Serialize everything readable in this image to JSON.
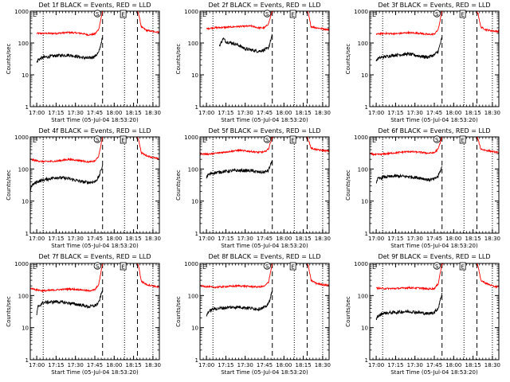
{
  "page": {
    "time_ticks": [
      "17:00",
      "17:15",
      "17:30",
      "17:45",
      "18:00",
      "18:15",
      "18:30"
    ],
    "xlabel": "Start Time (05-Jul-04 18:53:20)",
    "ylabel": "Counts/sec",
    "ytick_labels": [
      "1000",
      "100",
      "10",
      "1"
    ],
    "markers": {
      "eclipse": "E",
      "saa": "S"
    },
    "colors": {
      "events": "#000000",
      "lld": "#ff0000",
      "axes": "#000000",
      "background": "#ffffff"
    }
  },
  "chart_data": [
    {
      "type": "line",
      "title": "Det 1f BLACK = Events, RED = LLD",
      "xlabel": "Start Time (05-Jul-04 18:53:20)",
      "ylabel": "Counts/sec",
      "xlim_min": [
        0,
        100
      ],
      "ylim": [
        1,
        1000
      ],
      "y_scale": "log",
      "x_tick_min": [
        5,
        20,
        35,
        50,
        65,
        80,
        95
      ],
      "dotted_lines_min": [
        10,
        73,
        95
      ],
      "dashed_lines_min": [
        56,
        83
      ],
      "eclipse_marker_min": 72,
      "saa_marker_min": 52,
      "series": [
        {
          "name": "LLD",
          "color": "#ff0000",
          "x": [
            5,
            10,
            20,
            30,
            40,
            45,
            50,
            53,
            56,
            57
          ],
          "y": [
            200,
            200,
            200,
            215,
            200,
            180,
            190,
            270,
            1000,
            1000
          ]
        },
        {
          "name": "LLD",
          "color": "#ff0000",
          "x": [
            83,
            84,
            86,
            90,
            95,
            100
          ],
          "y": [
            1000,
            800,
            320,
            250,
            230,
            220
          ]
        },
        {
          "name": "Events",
          "color": "#000000",
          "x": [
            5,
            6,
            10,
            20,
            30,
            40,
            45,
            50,
            53,
            56
          ],
          "y": [
            24,
            30,
            35,
            40,
            42,
            35,
            33,
            38,
            50,
            150
          ]
        }
      ]
    },
    {
      "type": "line",
      "title": "Det 2f BLACK = Events, RED = LLD",
      "xlabel": "Start Time (05-Jul-04 18:53:20)",
      "ylabel": "Counts/sec",
      "xlim_min": [
        0,
        100
      ],
      "ylim": [
        1,
        1000
      ],
      "y_scale": "log",
      "x_tick_min": [
        5,
        20,
        35,
        50,
        65,
        80,
        95
      ],
      "dotted_lines_min": [
        10,
        73,
        95
      ],
      "dashed_lines_min": [
        56,
        83
      ],
      "eclipse_marker_min": 72,
      "saa_marker_min": 52,
      "series": [
        {
          "name": "LLD",
          "color": "#ff0000",
          "x": [
            5,
            10,
            20,
            30,
            40,
            45,
            50,
            53,
            56,
            57
          ],
          "y": [
            280,
            300,
            310,
            330,
            340,
            300,
            300,
            400,
            1000,
            1000
          ]
        },
        {
          "name": "LLD",
          "color": "#ff0000",
          "x": [
            83,
            84,
            86,
            90,
            95,
            100
          ],
          "y": [
            1000,
            800,
            330,
            300,
            280,
            260
          ]
        },
        {
          "name": "Events",
          "color": "#000000",
          "x": [
            15,
            18,
            20,
            25,
            30,
            35,
            40,
            45,
            50,
            53,
            56
          ],
          "y": [
            80,
            140,
            110,
            100,
            85,
            65,
            60,
            55,
            60,
            70,
            180
          ]
        }
      ]
    },
    {
      "type": "line",
      "title": "Det 3f BLACK = Events, RED = LLD",
      "xlabel": "Start Time (05-Jul-04 18:53:20)",
      "ylabel": "Counts/sec",
      "xlim_min": [
        0,
        100
      ],
      "ylim": [
        1,
        1000
      ],
      "y_scale": "log",
      "x_tick_min": [
        5,
        20,
        35,
        50,
        65,
        80,
        95
      ],
      "dotted_lines_min": [
        10,
        73,
        95
      ],
      "dashed_lines_min": [
        56,
        83
      ],
      "eclipse_marker_min": 72,
      "saa_marker_min": 52,
      "series": [
        {
          "name": "LLD",
          "color": "#ff0000",
          "x": [
            5,
            10,
            20,
            30,
            40,
            45,
            50,
            53,
            56,
            57
          ],
          "y": [
            190,
            200,
            195,
            210,
            200,
            185,
            190,
            260,
            1000,
            1000
          ]
        },
        {
          "name": "LLD",
          "color": "#ff0000",
          "x": [
            83,
            84,
            86,
            90,
            95,
            100
          ],
          "y": [
            1000,
            800,
            320,
            260,
            240,
            230
          ]
        },
        {
          "name": "Events",
          "color": "#000000",
          "x": [
            5,
            6,
            10,
            20,
            30,
            40,
            45,
            50,
            53,
            56
          ],
          "y": [
            26,
            32,
            36,
            42,
            45,
            38,
            36,
            42,
            55,
            150
          ]
        }
      ]
    },
    {
      "type": "line",
      "title": "Det 4f BLACK = Events, RED = LLD",
      "xlabel": "Start Time (05-Jul-04 18:53:20)",
      "ylabel": "Counts/sec",
      "xlim_min": [
        0,
        100
      ],
      "ylim": [
        1,
        1000
      ],
      "y_scale": "log",
      "x_tick_min": [
        5,
        20,
        35,
        50,
        65,
        80,
        95
      ],
      "dotted_lines_min": [
        10,
        73,
        95
      ],
      "dashed_lines_min": [
        56,
        83
      ],
      "eclipse_marker_min": 72,
      "saa_marker_min": 52,
      "series": [
        {
          "name": "LLD",
          "color": "#ff0000",
          "x": [
            0,
            5,
            10,
            20,
            30,
            40,
            45,
            50,
            53,
            56,
            57
          ],
          "y": [
            200,
            180,
            170,
            175,
            200,
            180,
            165,
            175,
            250,
            1000,
            1000
          ]
        },
        {
          "name": "LLD",
          "color": "#ff0000",
          "x": [
            83,
            84,
            86,
            90,
            95,
            100
          ],
          "y": [
            1000,
            800,
            320,
            260,
            230,
            200
          ]
        },
        {
          "name": "Events",
          "color": "#000000",
          "x": [
            0,
            1,
            5,
            10,
            20,
            30,
            40,
            45,
            50,
            53,
            56
          ],
          "y": [
            20,
            30,
            40,
            45,
            55,
            50,
            40,
            38,
            40,
            55,
            130
          ]
        }
      ]
    },
    {
      "type": "line",
      "title": "Det 5f BLACK = Events, RED = LLD",
      "xlabel": "Start Time (05-Jul-04 18:53:20)",
      "ylabel": "Counts/sec",
      "xlim_min": [
        0,
        100
      ],
      "ylim": [
        1,
        1000
      ],
      "y_scale": "log",
      "x_tick_min": [
        5,
        20,
        35,
        50,
        65,
        80,
        95
      ],
      "dotted_lines_min": [
        10,
        73,
        95
      ],
      "dashed_lines_min": [
        56,
        83
      ],
      "eclipse_marker_min": 72,
      "saa_marker_min": 52,
      "series": [
        {
          "name": "LLD",
          "color": "#ff0000",
          "x": [
            0,
            5,
            10,
            20,
            30,
            40,
            45,
            50,
            53,
            56,
            57
          ],
          "y": [
            300,
            290,
            300,
            340,
            380,
            350,
            330,
            340,
            420,
            1000,
            1000
          ]
        },
        {
          "name": "LLD",
          "color": "#ff0000",
          "x": [
            83,
            84,
            86,
            90,
            95,
            100
          ],
          "y": [
            1000,
            800,
            450,
            400,
            380,
            360
          ]
        },
        {
          "name": "Events",
          "color": "#000000",
          "x": [
            5,
            6,
            10,
            20,
            30,
            40,
            45,
            50,
            53,
            56
          ],
          "y": [
            55,
            65,
            75,
            85,
            90,
            88,
            80,
            80,
            90,
            190
          ]
        }
      ]
    },
    {
      "type": "line",
      "title": "Det 6f BLACK = Events, RED = LLD",
      "xlabel": "Start Time (05-Jul-04 18:53:20)",
      "ylabel": "Counts/sec",
      "xlim_min": [
        0,
        100
      ],
      "ylim": [
        1,
        1000
      ],
      "y_scale": "log",
      "x_tick_min": [
        5,
        20,
        35,
        50,
        65,
        80,
        95
      ],
      "dotted_lines_min": [
        10,
        73,
        95
      ],
      "dashed_lines_min": [
        56,
        83
      ],
      "eclipse_marker_min": 72,
      "saa_marker_min": 52,
      "series": [
        {
          "name": "LLD",
          "color": "#ff0000",
          "x": [
            0,
            5,
            10,
            20,
            30,
            40,
            45,
            50,
            53,
            56,
            57
          ],
          "y": [
            300,
            280,
            290,
            320,
            350,
            330,
            310,
            320,
            420,
            1000,
            1000
          ]
        },
        {
          "name": "LLD",
          "color": "#ff0000",
          "x": [
            83,
            84,
            86,
            90,
            95,
            100
          ],
          "y": [
            1000,
            800,
            420,
            380,
            350,
            320
          ]
        },
        {
          "name": "Events",
          "color": "#000000",
          "x": [
            5,
            6,
            10,
            20,
            30,
            40,
            45,
            50,
            53,
            56
          ],
          "y": [
            38,
            48,
            55,
            60,
            58,
            52,
            46,
            48,
            60,
            120
          ]
        }
      ]
    },
    {
      "type": "line",
      "title": "Det 7f BLACK = Events, RED = LLD",
      "xlabel": "Start Time (05-Jul-04 18:53:20)",
      "ylabel": "Counts/sec",
      "xlim_min": [
        0,
        100
      ],
      "ylim": [
        1,
        1000
      ],
      "y_scale": "log",
      "x_tick_min": [
        5,
        20,
        35,
        50,
        65,
        80,
        95
      ],
      "dotted_lines_min": [
        10,
        73,
        95
      ],
      "dashed_lines_min": [
        56,
        83
      ],
      "eclipse_marker_min": 72,
      "saa_marker_min": 52,
      "series": [
        {
          "name": "LLD",
          "color": "#ff0000",
          "x": [
            0,
            5,
            10,
            20,
            30,
            40,
            45,
            50,
            53,
            56,
            57
          ],
          "y": [
            170,
            150,
            140,
            150,
            160,
            150,
            140,
            150,
            220,
            1000,
            1000
          ]
        },
        {
          "name": "LLD",
          "color": "#ff0000",
          "x": [
            83,
            84,
            86,
            90,
            95,
            100
          ],
          "y": [
            1000,
            800,
            280,
            220,
            200,
            180
          ]
        },
        {
          "name": "Events",
          "color": "#000000",
          "x": [
            5,
            6,
            10,
            20,
            30,
            40,
            45,
            50,
            53,
            56
          ],
          "y": [
            25,
            45,
            60,
            65,
            58,
            50,
            45,
            48,
            60,
            150
          ]
        }
      ]
    },
    {
      "type": "line",
      "title": "Det 8f BLACK = Events, RED = LLD",
      "xlabel": "Start Time (05-Jul-04 18:53:20)",
      "ylabel": "Counts/sec",
      "xlim_min": [
        0,
        100
      ],
      "ylim": [
        1,
        1000
      ],
      "y_scale": "log",
      "x_tick_min": [
        5,
        20,
        35,
        50,
        65,
        80,
        95
      ],
      "dotted_lines_min": [
        10,
        73,
        95
      ],
      "dashed_lines_min": [
        56,
        83
      ],
      "eclipse_marker_min": 72,
      "saa_marker_min": 52,
      "series": [
        {
          "name": "LLD",
          "color": "#ff0000",
          "x": [
            0,
            5,
            10,
            20,
            30,
            40,
            45,
            50,
            53,
            56,
            57
          ],
          "y": [
            200,
            190,
            180,
            190,
            200,
            190,
            185,
            195,
            260,
            1000,
            1000
          ]
        },
        {
          "name": "LLD",
          "color": "#ff0000",
          "x": [
            83,
            84,
            86,
            90,
            95,
            100
          ],
          "y": [
            1000,
            800,
            300,
            240,
            220,
            200
          ]
        },
        {
          "name": "Events",
          "color": "#000000",
          "x": [
            5,
            6,
            10,
            20,
            30,
            40,
            45,
            50,
            53,
            56
          ],
          "y": [
            22,
            30,
            38,
            42,
            44,
            40,
            38,
            42,
            55,
            140
          ]
        }
      ]
    },
    {
      "type": "line",
      "title": "Det 9f BLACK = Events, RED = LLD",
      "xlabel": "Start Time (05-Jul-04 18:53:20)",
      "ylabel": "Counts/sec",
      "xlim_min": [
        0,
        100
      ],
      "ylim": [
        1,
        1000
      ],
      "y_scale": "log",
      "x_tick_min": [
        5,
        20,
        35,
        50,
        65,
        80,
        95
      ],
      "dotted_lines_min": [
        10,
        73,
        95
      ],
      "dashed_lines_min": [
        56,
        83
      ],
      "eclipse_marker_min": 72,
      "saa_marker_min": 52,
      "series": [
        {
          "name": "LLD",
          "color": "#ff0000",
          "x": [
            5,
            10,
            20,
            30,
            40,
            45,
            50,
            53,
            56,
            57
          ],
          "y": [
            170,
            165,
            165,
            175,
            170,
            160,
            165,
            230,
            1000,
            1000
          ]
        },
        {
          "name": "LLD",
          "color": "#ff0000",
          "x": [
            83,
            84,
            86,
            90,
            95,
            100
          ],
          "y": [
            1000,
            800,
            300,
            240,
            200,
            180
          ]
        },
        {
          "name": "Events",
          "color": "#000000",
          "x": [
            5,
            6,
            10,
            20,
            30,
            40,
            45,
            50,
            53,
            56
          ],
          "y": [
            18,
            22,
            28,
            30,
            32,
            29,
            27,
            30,
            40,
            120
          ]
        }
      ]
    }
  ]
}
